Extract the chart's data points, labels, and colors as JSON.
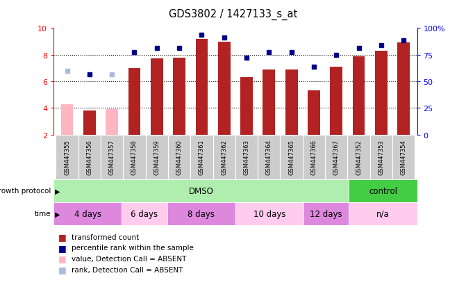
{
  "title": "GDS3802 / 1427133_s_at",
  "samples": [
    "GSM447355",
    "GSM447356",
    "GSM447357",
    "GSM447358",
    "GSM447359",
    "GSM447360",
    "GSM447361",
    "GSM447362",
    "GSM447363",
    "GSM447364",
    "GSM447365",
    "GSM447366",
    "GSM447367",
    "GSM447352",
    "GSM447353",
    "GSM447354"
  ],
  "bar_values": [
    4.3,
    3.8,
    3.9,
    7.0,
    7.7,
    7.8,
    9.2,
    9.0,
    6.3,
    6.9,
    6.9,
    5.3,
    7.1,
    7.9,
    8.3,
    8.9
  ],
  "bar_absent": [
    true,
    false,
    true,
    false,
    false,
    false,
    false,
    false,
    false,
    false,
    false,
    false,
    false,
    false,
    false,
    false
  ],
  "rank_values": [
    6.8,
    6.5,
    6.5,
    8.2,
    8.5,
    8.5,
    9.5,
    9.3,
    7.8,
    8.2,
    8.2,
    7.1,
    8.0,
    8.5,
    8.7,
    9.1
  ],
  "rank_absent": [
    true,
    false,
    true,
    false,
    false,
    false,
    false,
    false,
    false,
    false,
    false,
    false,
    false,
    false,
    false,
    false
  ],
  "ylim": [
    2,
    10
  ],
  "yticks": [
    2,
    4,
    6,
    8,
    10
  ],
  "right_yticks": [
    0,
    25,
    50,
    75,
    100
  ],
  "right_ylabels": [
    "0",
    "25",
    "50",
    "75",
    "100%"
  ],
  "bar_color_normal": "#b22222",
  "bar_color_absent": "#ffb6c1",
  "rank_color_normal": "#00008b",
  "rank_color_absent": "#aabbdd",
  "growth_protocol_groups": [
    {
      "label": "DMSO",
      "start": 0,
      "end": 13,
      "color": "#b0eeb0"
    },
    {
      "label": "control",
      "start": 13,
      "end": 16,
      "color": "#44cc44"
    }
  ],
  "time_groups": [
    {
      "label": "4 days",
      "start": 0,
      "end": 3,
      "color": "#dd88dd"
    },
    {
      "label": "6 days",
      "start": 3,
      "end": 5,
      "color": "#ffccee"
    },
    {
      "label": "8 days",
      "start": 5,
      "end": 8,
      "color": "#dd88dd"
    },
    {
      "label": "10 days",
      "start": 8,
      "end": 11,
      "color": "#ffccee"
    },
    {
      "label": "12 days",
      "start": 11,
      "end": 13,
      "color": "#dd88dd"
    },
    {
      "label": "n/a",
      "start": 13,
      "end": 16,
      "color": "#ffccee"
    }
  ],
  "legend_items": [
    {
      "label": "transformed count",
      "color": "#b22222"
    },
    {
      "label": "percentile rank within the sample",
      "color": "#00008b"
    },
    {
      "label": "value, Detection Call = ABSENT",
      "color": "#ffb6c1"
    },
    {
      "label": "rank, Detection Call = ABSENT",
      "color": "#aabbdd"
    }
  ],
  "growth_label": "growth protocol",
  "time_label": "time",
  "bar_width": 0.55
}
